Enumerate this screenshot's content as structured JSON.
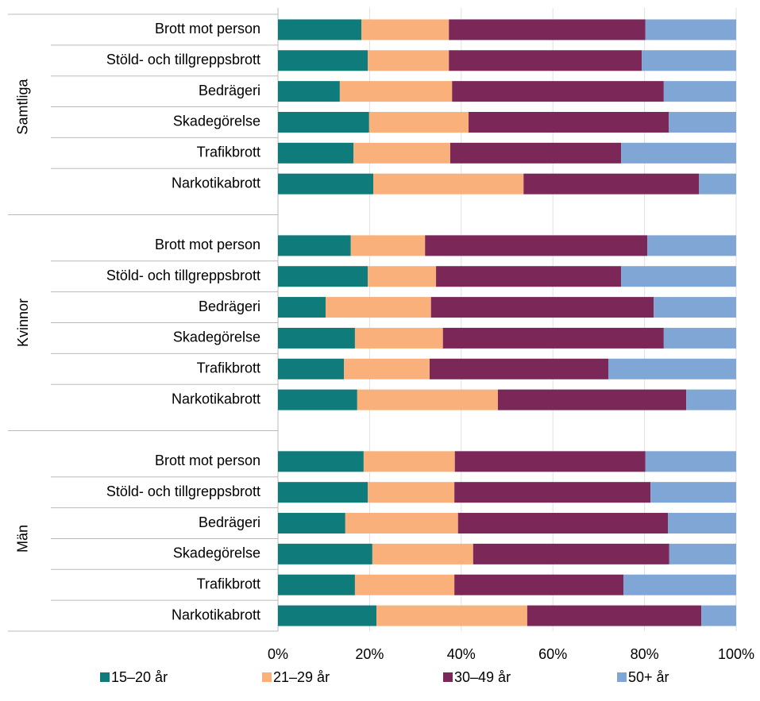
{
  "chart_data": {
    "type": "stacked-bar-horizontal",
    "groups": [
      "Samtliga",
      "Kvinnor",
      "Män"
    ],
    "categories": [
      "Brott mot person",
      "Stöld- och tillgreppsbrott",
      "Bedrägeri",
      "Skadegörelse",
      "Trafikbrott",
      "Narkotikabrott",
      "Brott mot person",
      "Stöld- och tillgreppsbrott",
      "Bedrägeri",
      "Skadegörelse",
      "Trafikbrott",
      "Narkotikabrott",
      "Brott mot person",
      "Stöld- och tillgreppsbrott",
      "Bedrägeri",
      "Skadegörelse",
      "Trafikbrott",
      "Narkotikabrott"
    ],
    "series": [
      {
        "name": "15–20 år",
        "color": "#0f7b7b",
        "values": [
          18.2,
          19.6,
          13.5,
          19.9,
          16.5,
          20.8,
          15.9,
          19.6,
          10.4,
          16.8,
          14.4,
          17.3,
          18.7,
          19.6,
          14.7,
          20.6,
          16.8,
          21.5
        ]
      },
      {
        "name": "21–29 år",
        "color": "#f9b07b",
        "values": [
          19.1,
          17.7,
          24.5,
          21.7,
          21.1,
          32.8,
          16.2,
          14.9,
          23.0,
          19.2,
          18.7,
          30.7,
          19.9,
          18.9,
          24.6,
          22.0,
          21.7,
          32.9
        ]
      },
      {
        "name": "30–49 år",
        "color": "#7b2858",
        "values": [
          42.9,
          42.1,
          46.2,
          43.7,
          37.3,
          38.3,
          48.5,
          40.4,
          48.6,
          48.2,
          39.0,
          41.1,
          41.6,
          42.8,
          45.8,
          42.8,
          36.9,
          38.0
        ]
      },
      {
        "name": "50+ år",
        "color": "#7fa6d5",
        "values": [
          19.8,
          20.6,
          15.8,
          14.7,
          25.1,
          8.1,
          19.4,
          25.1,
          18.0,
          15.8,
          27.9,
          10.9,
          19.8,
          18.7,
          14.9,
          14.6,
          24.6,
          7.6
        ]
      }
    ],
    "xlim": [
      0,
      100
    ],
    "xticks": [
      {
        "value": 0,
        "label": "0%"
      },
      {
        "value": 20,
        "label": "20%"
      },
      {
        "value": 40,
        "label": "40%"
      },
      {
        "value": 60,
        "label": "60%"
      },
      {
        "value": 80,
        "label": "80%"
      },
      {
        "value": 100,
        "label": "100%"
      }
    ],
    "grid": true,
    "legend": "bottom"
  }
}
